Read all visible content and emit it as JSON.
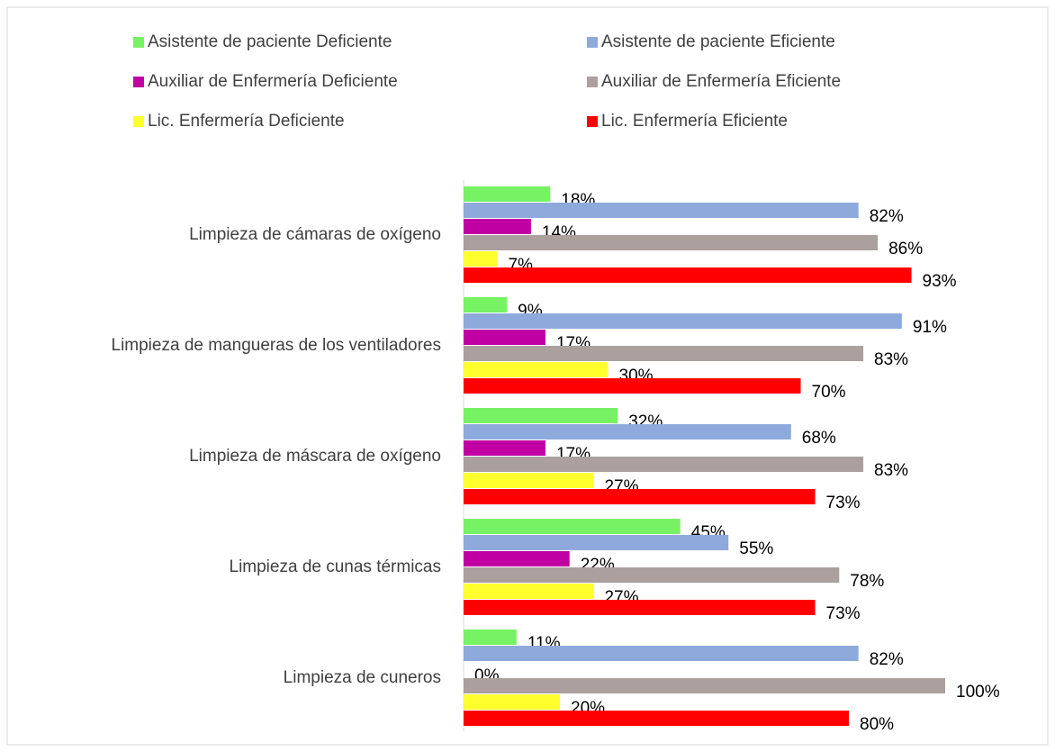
{
  "chart_data": {
    "type": "bar",
    "orientation": "horizontal",
    "categories": [
      "Limpieza de cámaras de oxígeno",
      "Limpieza de mangueras de los ventiladores",
      "Limpieza de máscara de oxígeno",
      "Limpieza de cunas térmicas",
      "Limpieza de cuneros"
    ],
    "xlim": [
      0,
      100
    ],
    "series": [
      {
        "name": "Asistente de paciente Deficiente",
        "color": "#77f264",
        "values": [
          18,
          9,
          32,
          45,
          11
        ],
        "value_labels": [
          "18%",
          "9%",
          "32%",
          "45%",
          "11%"
        ]
      },
      {
        "name": "Asistente de paciente Eficiente",
        "color": "#8eaadc",
        "values": [
          82,
          91,
          68,
          55,
          82
        ],
        "value_labels": [
          "82%",
          "91%",
          "68%",
          "55%",
          "82%"
        ]
      },
      {
        "name": "Auxiliar de Enfermería Deficiente",
        "color": "#c000a3",
        "values": [
          14,
          17,
          17,
          22,
          0
        ],
        "value_labels": [
          "14%",
          "17%",
          "17%",
          "22%",
          "0%"
        ]
      },
      {
        "name": "Auxiliar de Enfermería Eficiente",
        "color": "#aba09e",
        "values": [
          86,
          83,
          83,
          78,
          100
        ],
        "value_labels": [
          "86%",
          "83%",
          "83%",
          "78%",
          "100%"
        ]
      },
      {
        "name": "Lic. Enfermería Deficiente",
        "color": "#ffff2e",
        "values": [
          7,
          30,
          27,
          27,
          20
        ],
        "value_labels": [
          "7%",
          "30%",
          "27%",
          "27%",
          "20%"
        ]
      },
      {
        "name": "Lic. Enfermería Eficiente",
        "color": "#ff0000",
        "values": [
          93,
          70,
          73,
          73,
          80
        ],
        "value_labels": [
          "93%",
          "70%",
          "73%",
          "73%",
          "80%"
        ]
      }
    ]
  }
}
